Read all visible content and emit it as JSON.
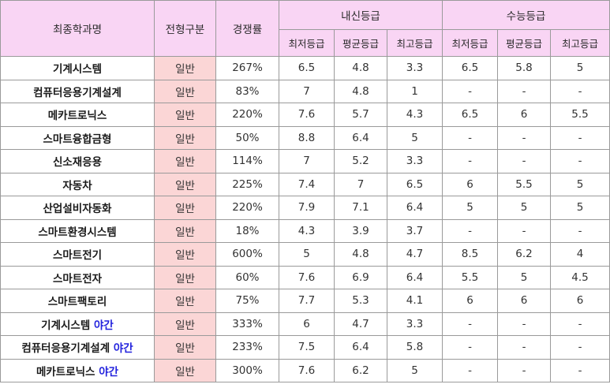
{
  "headers": {
    "major": "최종학과명",
    "type": "전형구분",
    "competition": "경쟁률",
    "naesin": "내신등급",
    "suneung": "수능등급",
    "sub": [
      "최저등급",
      "평균등급",
      "최고등급",
      "최저등급",
      "평균등급",
      "최고등급"
    ]
  },
  "rows": [
    {
      "major": "기계시스템",
      "night": "",
      "type": "일반",
      "rate": "267%",
      "n_min": "6.5",
      "n_avg": "4.8",
      "n_max": "3.3",
      "s_min": "6.5",
      "s_avg": "5.8",
      "s_max": "5"
    },
    {
      "major": "컴퓨터응용기계설계",
      "night": "",
      "type": "일반",
      "rate": "83%",
      "n_min": "7",
      "n_avg": "4.8",
      "n_max": "1",
      "s_min": "-",
      "s_avg": "-",
      "s_max": "-"
    },
    {
      "major": "메카트로닉스",
      "night": "",
      "type": "일반",
      "rate": "220%",
      "n_min": "7.6",
      "n_avg": "5.7",
      "n_max": "4.3",
      "s_min": "6.5",
      "s_avg": "6",
      "s_max": "5.5"
    },
    {
      "major": "스마트융합금형",
      "night": "",
      "type": "일반",
      "rate": "50%",
      "n_min": "8.8",
      "n_avg": "6.4",
      "n_max": "5",
      "s_min": "-",
      "s_avg": "-",
      "s_max": "-"
    },
    {
      "major": "신소재응용",
      "night": "",
      "type": "일반",
      "rate": "114%",
      "n_min": "7",
      "n_avg": "5.2",
      "n_max": "3.3",
      "s_min": "-",
      "s_avg": "-",
      "s_max": "-"
    },
    {
      "major": "자동차",
      "night": "",
      "type": "일반",
      "rate": "225%",
      "n_min": "7.4",
      "n_avg": "7",
      "n_max": "6.5",
      "s_min": "6",
      "s_avg": "5.5",
      "s_max": "5"
    },
    {
      "major": "산업설비자동화",
      "night": "",
      "type": "일반",
      "rate": "220%",
      "n_min": "7.9",
      "n_avg": "7.1",
      "n_max": "6.4",
      "s_min": "5",
      "s_avg": "5",
      "s_max": "5"
    },
    {
      "major": "스마트환경시스템",
      "night": "",
      "type": "일반",
      "rate": "18%",
      "n_min": "4.3",
      "n_avg": "3.9",
      "n_max": "3.7",
      "s_min": "-",
      "s_avg": "-",
      "s_max": "-"
    },
    {
      "major": "스마트전기",
      "night": "",
      "type": "일반",
      "rate": "600%",
      "n_min": "5",
      "n_avg": "4.8",
      "n_max": "4.7",
      "s_min": "8.5",
      "s_avg": "6.2",
      "s_max": "4"
    },
    {
      "major": "스마트전자",
      "night": "",
      "type": "일반",
      "rate": "60%",
      "n_min": "7.6",
      "n_avg": "6.9",
      "n_max": "6.4",
      "s_min": "5.5",
      "s_avg": "5",
      "s_max": "4.5"
    },
    {
      "major": "스마트팩토리",
      "night": "",
      "type": "일반",
      "rate": "75%",
      "n_min": "7.7",
      "n_avg": "5.3",
      "n_max": "4.1",
      "s_min": "6",
      "s_avg": "6",
      "s_max": "6"
    },
    {
      "major": "기계시스템",
      "night": "야간",
      "type": "일반",
      "rate": "333%",
      "n_min": "6",
      "n_avg": "4.7",
      "n_max": "3.3",
      "s_min": "-",
      "s_avg": "-",
      "s_max": "-"
    },
    {
      "major": "컴퓨터응용기계설계",
      "night": "야간",
      "type": "일반",
      "rate": "233%",
      "n_min": "7.5",
      "n_avg": "6.4",
      "n_max": "5.8",
      "s_min": "-",
      "s_avg": "-",
      "s_max": "-"
    },
    {
      "major": "메카트로닉스",
      "night": "야간",
      "type": "일반",
      "rate": "300%",
      "n_min": "7.6",
      "n_avg": "6.2",
      "n_max": "5",
      "s_min": "-",
      "s_avg": "-",
      "s_max": "-"
    }
  ]
}
